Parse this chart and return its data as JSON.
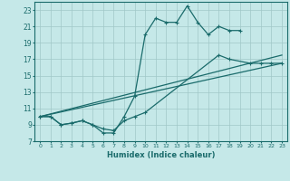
{
  "xlabel": "Humidex (Indice chaleur)",
  "background_color": "#c5e8e8",
  "grid_color": "#a0c8c8",
  "line_color": "#1a6b6b",
  "xlim": [
    -0.5,
    23.5
  ],
  "ylim": [
    7,
    24
  ],
  "yticks": [
    7,
    9,
    11,
    13,
    15,
    17,
    19,
    21,
    23
  ],
  "xticks": [
    0,
    1,
    2,
    3,
    4,
    5,
    6,
    7,
    8,
    9,
    10,
    11,
    12,
    13,
    14,
    15,
    16,
    17,
    18,
    19,
    20,
    21,
    22,
    23
  ],
  "line1_x": [
    0,
    1,
    2,
    3,
    4,
    5,
    6,
    7,
    8,
    9,
    10,
    11,
    12,
    13,
    14,
    15,
    16,
    17,
    18,
    19
  ],
  "line1_y": [
    10.0,
    10.0,
    9.0,
    9.2,
    9.5,
    9.0,
    8.0,
    8.0,
    10.0,
    12.5,
    20.0,
    22.0,
    21.5,
    21.5,
    23.5,
    21.5,
    20.0,
    21.0,
    20.5,
    20.5
  ],
  "line2_x": [
    0,
    1,
    2,
    3,
    4,
    5,
    6,
    7,
    8,
    9,
    10,
    17,
    18,
    20,
    21,
    22,
    23
  ],
  "line2_y": [
    10.0,
    10.0,
    9.0,
    9.2,
    9.5,
    9.0,
    8.5,
    8.3,
    9.5,
    10.0,
    10.5,
    17.5,
    17.0,
    16.5,
    16.5,
    16.5,
    16.5
  ],
  "line3_x": [
    0,
    23
  ],
  "line3_y": [
    10.0,
    17.5
  ],
  "line4_x": [
    0,
    23
  ],
  "line4_y": [
    10.0,
    16.5
  ]
}
